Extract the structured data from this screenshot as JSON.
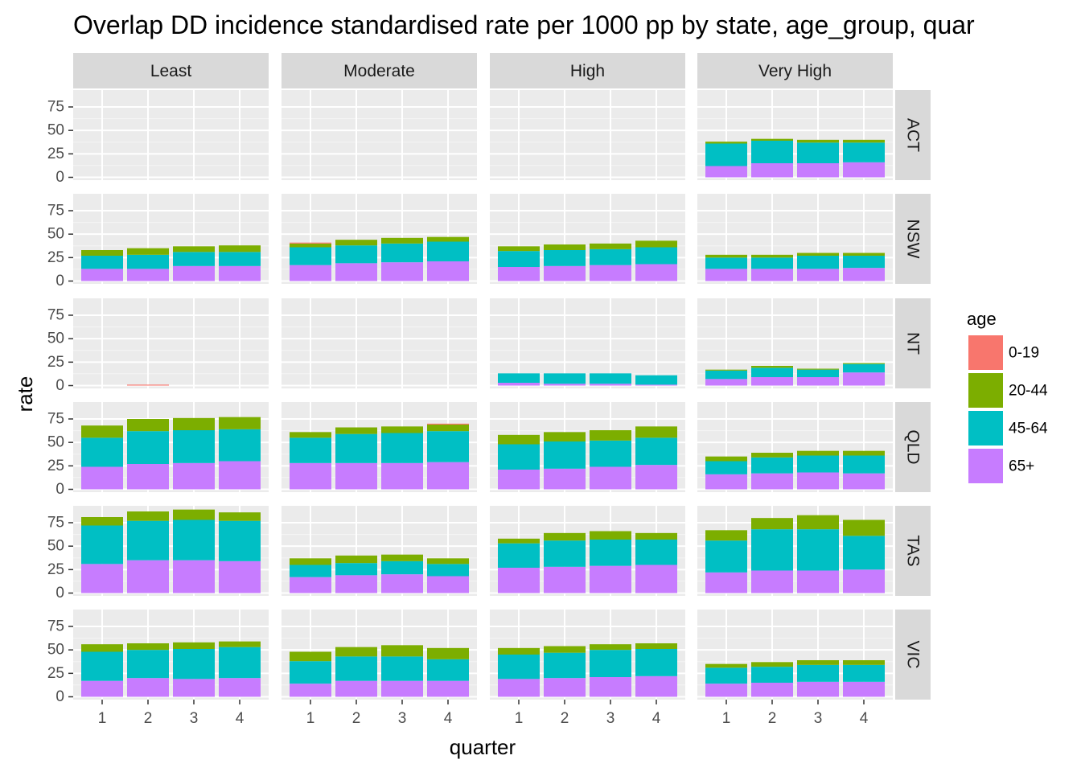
{
  "chart_data": {
    "type": "bar",
    "stacked": true,
    "title": "Overlap DD incidence standardised rate per 1000 pp by state, age_group, quar",
    "xlabel": "quarter",
    "ylabel": "rate",
    "x": [
      "1",
      "2",
      "3",
      "4"
    ],
    "ylim": [
      -3,
      93
    ],
    "yticks": [
      "0",
      "25",
      "50",
      "75"
    ],
    "facet_cols": [
      "Least",
      "Moderate",
      "High",
      "Very High"
    ],
    "facet_rows": [
      "ACT",
      "NSW",
      "NT",
      "QLD",
      "TAS",
      "VIC"
    ],
    "legend": {
      "title": "age",
      "position": "right",
      "entries": [
        "0-19",
        "20-44",
        "45-64",
        "65+"
      ]
    },
    "series_colors": {
      "0-19": "#F8766D",
      "20-44": "#7CAE00",
      "45-64": "#00BFC4",
      "65+": "#C77CFF"
    },
    "stack_order_bottom_to_top": [
      "65+",
      "45-64",
      "20-44",
      "0-19"
    ],
    "panels": [
      {
        "row": "ACT",
        "col": "Least",
        "bars": []
      },
      {
        "row": "ACT",
        "col": "Moderate",
        "bars": []
      },
      {
        "row": "ACT",
        "col": "High",
        "bars": []
      },
      {
        "row": "ACT",
        "col": "Very High",
        "bars": [
          {
            "quarter": 1,
            "65+": 12,
            "45-64": 24,
            "20-44": 2,
            "0-19": 0
          },
          {
            "quarter": 2,
            "65+": 15,
            "45-64": 24,
            "20-44": 2,
            "0-19": 0
          },
          {
            "quarter": 3,
            "65+": 15,
            "45-64": 22,
            "20-44": 3,
            "0-19": 0
          },
          {
            "quarter": 4,
            "65+": 16,
            "45-64": 21,
            "20-44": 3,
            "0-19": 0
          }
        ]
      },
      {
        "row": "NSW",
        "col": "Least",
        "bars": [
          {
            "quarter": 1,
            "65+": 13,
            "45-64": 14,
            "20-44": 6,
            "0-19": 0
          },
          {
            "quarter": 2,
            "65+": 13,
            "45-64": 15,
            "20-44": 7,
            "0-19": 0
          },
          {
            "quarter": 3,
            "65+": 16,
            "45-64": 15,
            "20-44": 6,
            "0-19": 0
          },
          {
            "quarter": 4,
            "65+": 16,
            "45-64": 15,
            "20-44": 7,
            "0-19": 0
          }
        ]
      },
      {
        "row": "NSW",
        "col": "Moderate",
        "bars": [
          {
            "quarter": 1,
            "65+": 17,
            "45-64": 19,
            "20-44": 4,
            "0-19": 1
          },
          {
            "quarter": 2,
            "65+": 19,
            "45-64": 19,
            "20-44": 6,
            "0-19": 0
          },
          {
            "quarter": 3,
            "65+": 20,
            "45-64": 20,
            "20-44": 6,
            "0-19": 0
          },
          {
            "quarter": 4,
            "65+": 21,
            "45-64": 21,
            "20-44": 5,
            "0-19": 0
          }
        ]
      },
      {
        "row": "NSW",
        "col": "High",
        "bars": [
          {
            "quarter": 1,
            "65+": 15,
            "45-64": 17,
            "20-44": 5,
            "0-19": 0
          },
          {
            "quarter": 2,
            "65+": 16,
            "45-64": 17,
            "20-44": 6,
            "0-19": 0
          },
          {
            "quarter": 3,
            "65+": 17,
            "45-64": 17,
            "20-44": 6,
            "0-19": 0
          },
          {
            "quarter": 4,
            "65+": 18,
            "45-64": 18,
            "20-44": 7,
            "0-19": 0
          }
        ]
      },
      {
        "row": "NSW",
        "col": "Very High",
        "bars": [
          {
            "quarter": 1,
            "65+": 13,
            "45-64": 12,
            "20-44": 3,
            "0-19": 0
          },
          {
            "quarter": 2,
            "65+": 13,
            "45-64": 12,
            "20-44": 3,
            "0-19": 0
          },
          {
            "quarter": 3,
            "65+": 13,
            "45-64": 14,
            "20-44": 3,
            "0-19": 0
          },
          {
            "quarter": 4,
            "65+": 14,
            "45-64": 13,
            "20-44": 3,
            "0-19": 0
          }
        ]
      },
      {
        "row": "NT",
        "col": "Least",
        "bars": [
          {
            "quarter": 2,
            "65+": 0,
            "45-64": 0,
            "20-44": 0,
            "0-19": 1
          }
        ]
      },
      {
        "row": "NT",
        "col": "Moderate",
        "bars": []
      },
      {
        "row": "NT",
        "col": "High",
        "bars": [
          {
            "quarter": 1,
            "65+": 3,
            "45-64": 10,
            "20-44": 0,
            "0-19": 0
          },
          {
            "quarter": 2,
            "65+": 2,
            "45-64": 11,
            "20-44": 0,
            "0-19": 0
          },
          {
            "quarter": 3,
            "65+": 2,
            "45-64": 11,
            "20-44": 0,
            "0-19": 0
          },
          {
            "quarter": 4,
            "65+": 1,
            "45-64": 10,
            "20-44": 0,
            "0-19": 0
          }
        ]
      },
      {
        "row": "NT",
        "col": "Very High",
        "bars": [
          {
            "quarter": 1,
            "65+": 7,
            "45-64": 9,
            "20-44": 1,
            "0-19": 0
          },
          {
            "quarter": 2,
            "65+": 9,
            "45-64": 10,
            "20-44": 2,
            "0-19": 0
          },
          {
            "quarter": 3,
            "65+": 9,
            "45-64": 8,
            "20-44": 1,
            "0-19": 0
          },
          {
            "quarter": 4,
            "65+": 14,
            "45-64": 9,
            "20-44": 1,
            "0-19": 0
          }
        ]
      },
      {
        "row": "QLD",
        "col": "Least",
        "bars": [
          {
            "quarter": 1,
            "65+": 24,
            "45-64": 31,
            "20-44": 13,
            "0-19": 0
          },
          {
            "quarter": 2,
            "65+": 27,
            "45-64": 35,
            "20-44": 13,
            "0-19": 0
          },
          {
            "quarter": 3,
            "65+": 28,
            "45-64": 35,
            "20-44": 13,
            "0-19": 0
          },
          {
            "quarter": 4,
            "65+": 30,
            "45-64": 34,
            "20-44": 13,
            "0-19": 0
          }
        ]
      },
      {
        "row": "QLD",
        "col": "Moderate",
        "bars": [
          {
            "quarter": 1,
            "65+": 28,
            "45-64": 27,
            "20-44": 6,
            "0-19": 0
          },
          {
            "quarter": 2,
            "65+": 28,
            "45-64": 31,
            "20-44": 7,
            "0-19": 0
          },
          {
            "quarter": 3,
            "65+": 28,
            "45-64": 32,
            "20-44": 7,
            "0-19": 0
          },
          {
            "quarter": 4,
            "65+": 29,
            "45-64": 33,
            "20-44": 7,
            "0-19": 1
          }
        ]
      },
      {
        "row": "QLD",
        "col": "High",
        "bars": [
          {
            "quarter": 1,
            "65+": 21,
            "45-64": 27,
            "20-44": 10,
            "0-19": 0
          },
          {
            "quarter": 2,
            "65+": 22,
            "45-64": 29,
            "20-44": 10,
            "0-19": 0
          },
          {
            "quarter": 3,
            "65+": 24,
            "45-64": 28,
            "20-44": 11,
            "0-19": 0
          },
          {
            "quarter": 4,
            "65+": 26,
            "45-64": 29,
            "20-44": 12,
            "0-19": 0
          }
        ]
      },
      {
        "row": "QLD",
        "col": "Very High",
        "bars": [
          {
            "quarter": 1,
            "65+": 16,
            "45-64": 14,
            "20-44": 5,
            "0-19": 0
          },
          {
            "quarter": 2,
            "65+": 17,
            "45-64": 17,
            "20-44": 5,
            "0-19": 0
          },
          {
            "quarter": 3,
            "65+": 18,
            "45-64": 18,
            "20-44": 5,
            "0-19": 0
          },
          {
            "quarter": 4,
            "65+": 17,
            "45-64": 19,
            "20-44": 5,
            "0-19": 0
          }
        ]
      },
      {
        "row": "TAS",
        "col": "Least",
        "bars": [
          {
            "quarter": 1,
            "65+": 31,
            "45-64": 41,
            "20-44": 9,
            "0-19": 0
          },
          {
            "quarter": 2,
            "65+": 35,
            "45-64": 42,
            "20-44": 10,
            "0-19": 0
          },
          {
            "quarter": 3,
            "65+": 35,
            "45-64": 43,
            "20-44": 11,
            "0-19": 0
          },
          {
            "quarter": 4,
            "65+": 34,
            "45-64": 43,
            "20-44": 9,
            "0-19": 0
          }
        ]
      },
      {
        "row": "TAS",
        "col": "Moderate",
        "bars": [
          {
            "quarter": 1,
            "65+": 17,
            "45-64": 13,
            "20-44": 7,
            "0-19": 0
          },
          {
            "quarter": 2,
            "65+": 19,
            "45-64": 13,
            "20-44": 8,
            "0-19": 0
          },
          {
            "quarter": 3,
            "65+": 20,
            "45-64": 14,
            "20-44": 7,
            "0-19": 0
          },
          {
            "quarter": 4,
            "65+": 18,
            "45-64": 13,
            "20-44": 6,
            "0-19": 0
          }
        ]
      },
      {
        "row": "TAS",
        "col": "High",
        "bars": [
          {
            "quarter": 1,
            "65+": 27,
            "45-64": 26,
            "20-44": 5,
            "0-19": 0
          },
          {
            "quarter": 2,
            "65+": 28,
            "45-64": 28,
            "20-44": 8,
            "0-19": 0
          },
          {
            "quarter": 3,
            "65+": 29,
            "45-64": 28,
            "20-44": 9,
            "0-19": 0
          },
          {
            "quarter": 4,
            "65+": 30,
            "45-64": 27,
            "20-44": 7,
            "0-19": 0
          }
        ]
      },
      {
        "row": "TAS",
        "col": "Very High",
        "bars": [
          {
            "quarter": 1,
            "65+": 22,
            "45-64": 34,
            "20-44": 11,
            "0-19": 0
          },
          {
            "quarter": 2,
            "65+": 24,
            "45-64": 44,
            "20-44": 12,
            "0-19": 0
          },
          {
            "quarter": 3,
            "65+": 24,
            "45-64": 44,
            "20-44": 15,
            "0-19": 0
          },
          {
            "quarter": 4,
            "65+": 25,
            "45-64": 36,
            "20-44": 17,
            "0-19": 0
          }
        ]
      },
      {
        "row": "VIC",
        "col": "Least",
        "bars": [
          {
            "quarter": 1,
            "65+": 17,
            "45-64": 31,
            "20-44": 8,
            "0-19": 0
          },
          {
            "quarter": 2,
            "65+": 20,
            "45-64": 30,
            "20-44": 7,
            "0-19": 0
          },
          {
            "quarter": 3,
            "65+": 19,
            "45-64": 32,
            "20-44": 7,
            "0-19": 0
          },
          {
            "quarter": 4,
            "65+": 20,
            "45-64": 33,
            "20-44": 6,
            "0-19": 0
          }
        ]
      },
      {
        "row": "VIC",
        "col": "Moderate",
        "bars": [
          {
            "quarter": 1,
            "65+": 14,
            "45-64": 24,
            "20-44": 10,
            "0-19": 0
          },
          {
            "quarter": 2,
            "65+": 17,
            "45-64": 26,
            "20-44": 10,
            "0-19": 0
          },
          {
            "quarter": 3,
            "65+": 17,
            "45-64": 26,
            "20-44": 12,
            "0-19": 0
          },
          {
            "quarter": 4,
            "65+": 17,
            "45-64": 23,
            "20-44": 12,
            "0-19": 0
          }
        ]
      },
      {
        "row": "VIC",
        "col": "High",
        "bars": [
          {
            "quarter": 1,
            "65+": 19,
            "45-64": 26,
            "20-44": 7,
            "0-19": 0
          },
          {
            "quarter": 2,
            "65+": 20,
            "45-64": 27,
            "20-44": 7,
            "0-19": 0
          },
          {
            "quarter": 3,
            "65+": 21,
            "45-64": 29,
            "20-44": 6,
            "0-19": 0
          },
          {
            "quarter": 4,
            "65+": 22,
            "45-64": 29,
            "20-44": 6,
            "0-19": 0
          }
        ]
      },
      {
        "row": "VIC",
        "col": "Very High",
        "bars": [
          {
            "quarter": 1,
            "65+": 14,
            "45-64": 17,
            "20-44": 4,
            "0-19": 0
          },
          {
            "quarter": 2,
            "65+": 15,
            "45-64": 17,
            "20-44": 5,
            "0-19": 0
          },
          {
            "quarter": 3,
            "65+": 16,
            "45-64": 18,
            "20-44": 5,
            "0-19": 0
          },
          {
            "quarter": 4,
            "65+": 16,
            "45-64": 18,
            "20-44": 5,
            "0-19": 0
          }
        ]
      }
    ]
  }
}
